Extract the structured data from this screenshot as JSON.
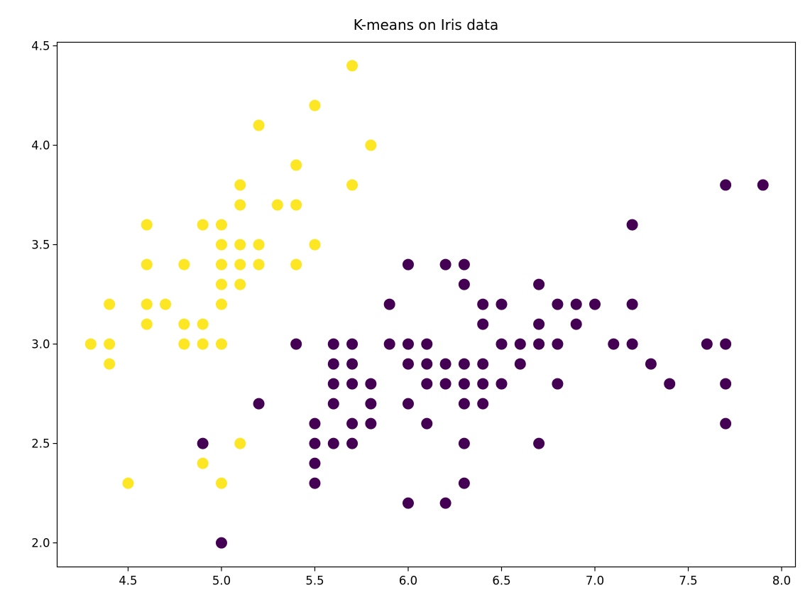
{
  "chart_data": {
    "type": "scatter",
    "title": "K-means on Iris data",
    "xlabel": "",
    "ylabel": "",
    "xlim": [
      4.12,
      8.074
    ],
    "ylim": [
      1.879,
      4.518
    ],
    "xticks": [
      "4.5",
      "5.0",
      "5.5",
      "6.0",
      "6.5",
      "7.0",
      "7.5",
      "8.0"
    ],
    "yticks": [
      "2.0",
      "2.5",
      "3.0",
      "3.5",
      "4.0",
      "4.5"
    ],
    "grid": false,
    "colors": {
      "cluster_0": "#fde725",
      "cluster_1": "#440154"
    },
    "series": [
      {
        "cluster": 0,
        "color": "#fde725",
        "points": [
          [
            4.3,
            3.0
          ],
          [
            4.4,
            3.2
          ],
          [
            4.4,
            3.0
          ],
          [
            4.4,
            2.9
          ],
          [
            4.5,
            2.3
          ],
          [
            4.6,
            3.6
          ],
          [
            4.6,
            3.4
          ],
          [
            4.6,
            3.2
          ],
          [
            4.6,
            3.1
          ],
          [
            4.7,
            3.2
          ],
          [
            4.8,
            3.4
          ],
          [
            4.8,
            3.1
          ],
          [
            4.8,
            3.0
          ],
          [
            4.9,
            3.6
          ],
          [
            4.9,
            3.1
          ],
          [
            4.9,
            3.0
          ],
          [
            4.9,
            2.4
          ],
          [
            5.0,
            3.6
          ],
          [
            5.0,
            3.5
          ],
          [
            5.0,
            3.4
          ],
          [
            5.0,
            3.3
          ],
          [
            5.0,
            3.2
          ],
          [
            5.0,
            3.0
          ],
          [
            5.0,
            2.3
          ],
          [
            5.1,
            3.8
          ],
          [
            5.1,
            3.7
          ],
          [
            5.1,
            3.5
          ],
          [
            5.1,
            3.4
          ],
          [
            5.1,
            3.3
          ],
          [
            5.1,
            2.5
          ],
          [
            5.2,
            4.1
          ],
          [
            5.2,
            3.5
          ],
          [
            5.2,
            3.4
          ],
          [
            5.3,
            3.7
          ],
          [
            5.4,
            3.9
          ],
          [
            5.4,
            3.7
          ],
          [
            5.4,
            3.4
          ],
          [
            5.5,
            4.2
          ],
          [
            5.5,
            3.5
          ],
          [
            5.7,
            4.4
          ],
          [
            5.7,
            3.8
          ],
          [
            5.8,
            4.0
          ]
        ]
      },
      {
        "cluster": 1,
        "color": "#440154",
        "points": [
          [
            4.9,
            2.5
          ],
          [
            5.0,
            2.0
          ],
          [
            5.2,
            2.7
          ],
          [
            5.4,
            3.0
          ],
          [
            5.5,
            2.6
          ],
          [
            5.5,
            2.5
          ],
          [
            5.5,
            2.4
          ],
          [
            5.5,
            2.3
          ],
          [
            5.6,
            3.0
          ],
          [
            5.6,
            2.9
          ],
          [
            5.6,
            2.8
          ],
          [
            5.6,
            2.7
          ],
          [
            5.6,
            2.5
          ],
          [
            5.7,
            3.0
          ],
          [
            5.7,
            2.9
          ],
          [
            5.7,
            2.8
          ],
          [
            5.7,
            2.6
          ],
          [
            5.7,
            2.5
          ],
          [
            5.8,
            2.8
          ],
          [
            5.8,
            2.7
          ],
          [
            5.8,
            2.6
          ],
          [
            5.9,
            3.2
          ],
          [
            5.9,
            3.0
          ],
          [
            6.0,
            3.4
          ],
          [
            6.0,
            3.0
          ],
          [
            6.0,
            2.9
          ],
          [
            6.0,
            2.7
          ],
          [
            6.0,
            2.2
          ],
          [
            6.1,
            3.0
          ],
          [
            6.1,
            2.9
          ],
          [
            6.1,
            2.8
          ],
          [
            6.1,
            2.6
          ],
          [
            6.2,
            3.4
          ],
          [
            6.2,
            2.9
          ],
          [
            6.2,
            2.8
          ],
          [
            6.2,
            2.2
          ],
          [
            6.3,
            3.4
          ],
          [
            6.3,
            3.3
          ],
          [
            6.3,
            2.9
          ],
          [
            6.3,
            2.8
          ],
          [
            6.3,
            2.7
          ],
          [
            6.3,
            2.5
          ],
          [
            6.3,
            2.3
          ],
          [
            6.4,
            3.2
          ],
          [
            6.4,
            3.1
          ],
          [
            6.4,
            2.9
          ],
          [
            6.4,
            2.8
          ],
          [
            6.4,
            2.7
          ],
          [
            6.5,
            3.2
          ],
          [
            6.5,
            3.0
          ],
          [
            6.5,
            2.8
          ],
          [
            6.6,
            3.0
          ],
          [
            6.6,
            2.9
          ],
          [
            6.7,
            3.3
          ],
          [
            6.7,
            3.1
          ],
          [
            6.7,
            3.0
          ],
          [
            6.7,
            2.5
          ],
          [
            6.8,
            3.2
          ],
          [
            6.8,
            3.0
          ],
          [
            6.8,
            2.8
          ],
          [
            6.9,
            3.2
          ],
          [
            6.9,
            3.1
          ],
          [
            7.0,
            3.2
          ],
          [
            7.1,
            3.0
          ],
          [
            7.2,
            3.6
          ],
          [
            7.2,
            3.2
          ],
          [
            7.2,
            3.0
          ],
          [
            7.3,
            2.9
          ],
          [
            7.4,
            2.8
          ],
          [
            7.6,
            3.0
          ],
          [
            7.7,
            3.8
          ],
          [
            7.7,
            3.0
          ],
          [
            7.7,
            2.8
          ],
          [
            7.7,
            2.6
          ],
          [
            7.9,
            3.8
          ]
        ]
      }
    ]
  }
}
